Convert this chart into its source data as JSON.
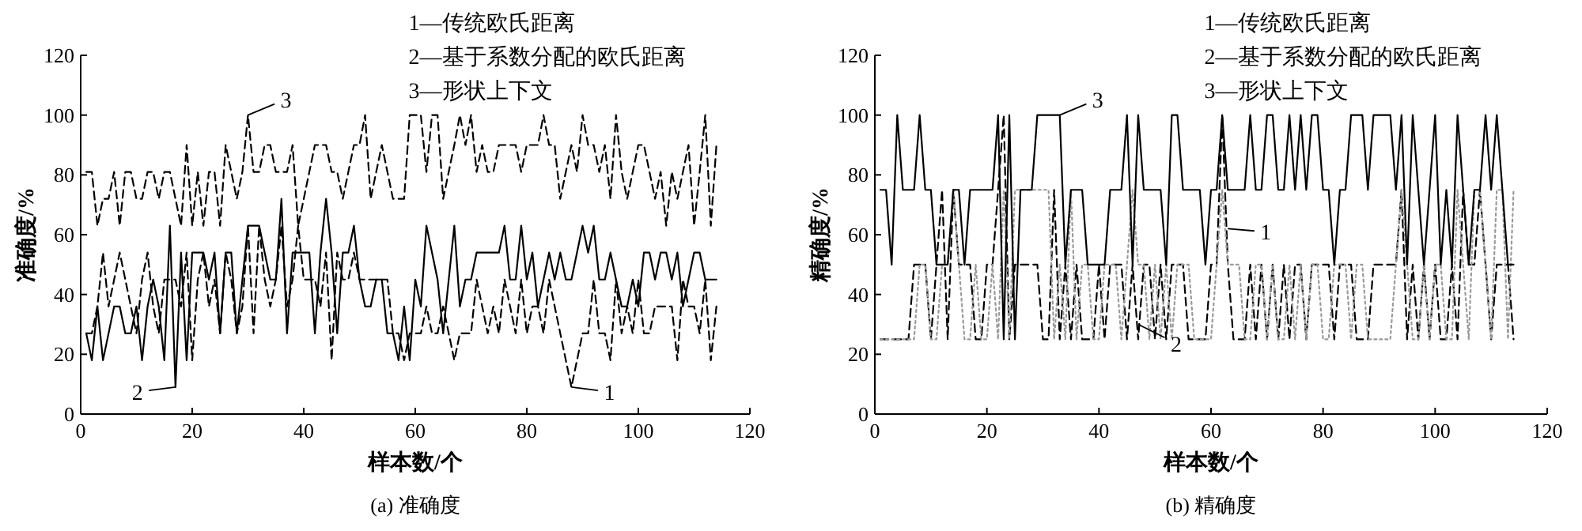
{
  "chart_data": [
    {
      "type": "line",
      "title": "(a)  准确度",
      "xlabel": "样本数/个",
      "ylabel": "准确度/%",
      "x": [
        1,
        2,
        3,
        4,
        5,
        6,
        7,
        8,
        9,
        10,
        11,
        12,
        13,
        14,
        15,
        16,
        17,
        18,
        19,
        20,
        21,
        22,
        23,
        24,
        25,
        26,
        27,
        28,
        29,
        30,
        31,
        32,
        33,
        34,
        35,
        36,
        37,
        38,
        39,
        40,
        41,
        42,
        43,
        44,
        45,
        46,
        47,
        48,
        49,
        50,
        51,
        52,
        53,
        54,
        55,
        56,
        57,
        58,
        59,
        60,
        61,
        62,
        63,
        64,
        65,
        66,
        67,
        68,
        69,
        70,
        71,
        72,
        73,
        74,
        75,
        76,
        77,
        78,
        79,
        80,
        81,
        82,
        83,
        84,
        85,
        86,
        87,
        88,
        89,
        90,
        91,
        92,
        93,
        94,
        95,
        96,
        97,
        98,
        99,
        100,
        101,
        102,
        103,
        104,
        105,
        106,
        107,
        108,
        109,
        110,
        111,
        112,
        113,
        114
      ],
      "series": [
        {
          "color": "#000000",
          "line_style": "dashed",
          "values": [
            27,
            27,
            36,
            54,
            36,
            45,
            54,
            45,
            36,
            27,
            45,
            54,
            36,
            27,
            45,
            45,
            45,
            36,
            54,
            18,
            45,
            54,
            36,
            45,
            27,
            54,
            45,
            27,
            36,
            63,
            27,
            63,
            45,
            36,
            45,
            63,
            36,
            45,
            63,
            45,
            45,
            45,
            36,
            54,
            18,
            54,
            45,
            45,
            54,
            45,
            45,
            45,
            45,
            45,
            45,
            27,
            27,
            18,
            27,
            27,
            27,
            36,
            27,
            27,
            36,
            27,
            18,
            27,
            27,
            27,
            45,
            36,
            27,
            36,
            27,
            45,
            36,
            27,
            45,
            27,
            36,
            36,
            27,
            45,
            36,
            27,
            18,
            9,
            18,
            27,
            27,
            45,
            27,
            27,
            18,
            45,
            27,
            36,
            27,
            45,
            27,
            27,
            36,
            36,
            36,
            36,
            18,
            45,
            36,
            36,
            27,
            45,
            18,
            36
          ]
        },
        {
          "color": "#000000",
          "line_style": "solid",
          "values": [
            27,
            18,
            36,
            18,
            27,
            36,
            36,
            27,
            27,
            36,
            18,
            36,
            45,
            36,
            18,
            63,
            9,
            54,
            18,
            54,
            54,
            54,
            45,
            54,
            27,
            54,
            54,
            27,
            45,
            63,
            63,
            63,
            54,
            45,
            45,
            72,
            27,
            54,
            54,
            54,
            54,
            27,
            54,
            72,
            54,
            27,
            54,
            54,
            63,
            45,
            36,
            36,
            45,
            45,
            27,
            27,
            18,
            36,
            18,
            45,
            36,
            63,
            54,
            45,
            27,
            45,
            63,
            36,
            45,
            45,
            54,
            54,
            54,
            54,
            54,
            63,
            45,
            45,
            63,
            45,
            54,
            36,
            45,
            54,
            45,
            54,
            45,
            45,
            54,
            63,
            54,
            63,
            45,
            45,
            54,
            45,
            36,
            36,
            45,
            36,
            54,
            54,
            45,
            54,
            54,
            45,
            54,
            36,
            45,
            54,
            54,
            45,
            45,
            45
          ]
        },
        {
          "color": "#000000",
          "line_style": "dashed",
          "values": [
            81,
            81,
            63,
            72,
            72,
            81,
            63,
            81,
            81,
            72,
            72,
            81,
            81,
            72,
            81,
            81,
            72,
            63,
            90,
            63,
            81,
            63,
            81,
            81,
            63,
            90,
            81,
            72,
            81,
            100,
            81,
            81,
            90,
            90,
            81,
            81,
            81,
            90,
            63,
            72,
            81,
            90,
            90,
            90,
            81,
            81,
            72,
            81,
            90,
            90,
            100,
            72,
            81,
            90,
            81,
            72,
            72,
            72,
            100,
            100,
            100,
            81,
            100,
            100,
            72,
            81,
            90,
            100,
            90,
            100,
            81,
            90,
            81,
            81,
            90,
            90,
            90,
            90,
            81,
            90,
            90,
            90,
            100,
            90,
            90,
            72,
            81,
            90,
            81,
            100,
            90,
            90,
            81,
            90,
            72,
            100,
            81,
            72,
            81,
            90,
            90,
            81,
            72,
            81,
            63,
            81,
            72,
            81,
            90,
            63,
            81,
            100,
            63,
            90
          ]
        }
      ],
      "xlim": [
        0,
        120
      ],
      "ylim": [
        0,
        120
      ],
      "xticks": [
        0,
        20,
        40,
        60,
        80,
        100,
        120
      ],
      "yticks": [
        0,
        20,
        40,
        60,
        80,
        100,
        120
      ],
      "annotations": [
        "1—传统欧氏距离",
        "2—基于系数分配的欧氏距离",
        "3—形状上下文",
        {
          "text": "3",
          "x": 30,
          "y": 100
        },
        {
          "text": "2",
          "x": 17,
          "y": 9
        },
        {
          "text": "1",
          "x": 88,
          "y": 9
        }
      ]
    },
    {
      "type": "line",
      "title": "(b)  精确度",
      "xlabel": "样本数/个",
      "ylabel": "精确度/%",
      "x": [
        1,
        2,
        3,
        4,
        5,
        6,
        7,
        8,
        9,
        10,
        11,
        12,
        13,
        14,
        15,
        16,
        17,
        18,
        19,
        20,
        21,
        22,
        23,
        24,
        25,
        26,
        27,
        28,
        29,
        30,
        31,
        32,
        33,
        34,
        35,
        36,
        37,
        38,
        39,
        40,
        41,
        42,
        43,
        44,
        45,
        46,
        47,
        48,
        49,
        50,
        51,
        52,
        53,
        54,
        55,
        56,
        57,
        58,
        59,
        60,
        61,
        62,
        63,
        64,
        65,
        66,
        67,
        68,
        69,
        70,
        71,
        72,
        73,
        74,
        75,
        76,
        77,
        78,
        79,
        80,
        81,
        82,
        83,
        84,
        85,
        86,
        87,
        88,
        89,
        90,
        91,
        92,
        93,
        94,
        95,
        96,
        97,
        98,
        99,
        100,
        101,
        102,
        103,
        104,
        105,
        106,
        107,
        108,
        109,
        110,
        111,
        112,
        113,
        114
      ],
      "series": [
        {
          "color": "#000000",
          "line_style": "dashed",
          "values": [
            25,
            25,
            25,
            25,
            25,
            25,
            50,
            50,
            50,
            25,
            50,
            75,
            25,
            75,
            50,
            50,
            50,
            25,
            25,
            50,
            50,
            75,
            100,
            25,
            50,
            50,
            50,
            50,
            50,
            25,
            25,
            75,
            25,
            50,
            25,
            50,
            25,
            25,
            25,
            50,
            25,
            50,
            50,
            50,
            25,
            50,
            25,
            50,
            50,
            25,
            50,
            25,
            50,
            50,
            50,
            25,
            25,
            25,
            25,
            50,
            50,
            100,
            50,
            25,
            25,
            25,
            50,
            25,
            50,
            25,
            50,
            25,
            50,
            25,
            50,
            50,
            25,
            50,
            50,
            50,
            50,
            25,
            50,
            50,
            50,
            25,
            25,
            25,
            50,
            50,
            50,
            50,
            50,
            75,
            25,
            50,
            25,
            50,
            25,
            50,
            25,
            25,
            50,
            25,
            75,
            50,
            50,
            75,
            50,
            25,
            50,
            50,
            50,
            25
          ]
        },
        {
          "color": "#9a9a9a",
          "line_style": "dotted",
          "values": [
            25,
            25,
            25,
            25,
            25,
            25,
            25,
            50,
            50,
            25,
            25,
            50,
            50,
            75,
            50,
            25,
            25,
            50,
            25,
            25,
            50,
            25,
            75,
            25,
            75,
            75,
            75,
            75,
            75,
            75,
            75,
            25,
            50,
            25,
            75,
            25,
            50,
            50,
            25,
            25,
            50,
            50,
            50,
            25,
            50,
            75,
            50,
            50,
            25,
            50,
            25,
            50,
            25,
            50,
            50,
            50,
            25,
            25,
            25,
            25,
            50,
            75,
            50,
            50,
            50,
            25,
            25,
            50,
            50,
            25,
            50,
            25,
            25,
            50,
            25,
            50,
            25,
            50,
            50,
            25,
            25,
            50,
            50,
            50,
            25,
            50,
            50,
            25,
            25,
            25,
            25,
            25,
            50,
            75,
            50,
            25,
            25,
            50,
            25,
            50,
            50,
            25,
            25,
            75,
            50,
            25,
            75,
            75,
            50,
            25,
            75,
            75,
            25,
            75
          ]
        },
        {
          "color": "#000000",
          "line_style": "solid",
          "values": [
            75,
            75,
            50,
            100,
            75,
            75,
            75,
            100,
            75,
            75,
            50,
            50,
            50,
            75,
            75,
            50,
            75,
            75,
            75,
            75,
            75,
            100,
            25,
            100,
            25,
            75,
            75,
            75,
            100,
            100,
            100,
            100,
            100,
            50,
            75,
            75,
            75,
            50,
            50,
            50,
            50,
            75,
            75,
            75,
            100,
            50,
            100,
            75,
            75,
            75,
            75,
            50,
            100,
            100,
            75,
            75,
            75,
            75,
            50,
            75,
            75,
            100,
            75,
            75,
            75,
            75,
            100,
            75,
            75,
            100,
            100,
            75,
            75,
            100,
            75,
            100,
            75,
            100,
            100,
            75,
            75,
            50,
            75,
            75,
            100,
            100,
            100,
            75,
            100,
            100,
            100,
            100,
            75,
            100,
            50,
            100,
            75,
            50,
            75,
            100,
            50,
            75,
            50,
            100,
            75,
            50,
            75,
            75,
            100,
            75,
            100,
            75,
            50,
            50
          ]
        }
      ],
      "xlim": [
        0,
        120
      ],
      "ylim": [
        0,
        120
      ],
      "xticks": [
        0,
        20,
        40,
        60,
        80,
        100,
        120
      ],
      "yticks": [
        0,
        20,
        40,
        60,
        80,
        100,
        120
      ],
      "annotations": [
        "1—传统欧氏距离",
        "2—基于系数分配的欧氏距离",
        "3—形状上下文",
        {
          "text": "3",
          "x": 33,
          "y": 100
        },
        {
          "text": "1",
          "x": 63,
          "y": 62
        },
        {
          "text": "2",
          "x": 47,
          "y": 30
        }
      ]
    }
  ]
}
